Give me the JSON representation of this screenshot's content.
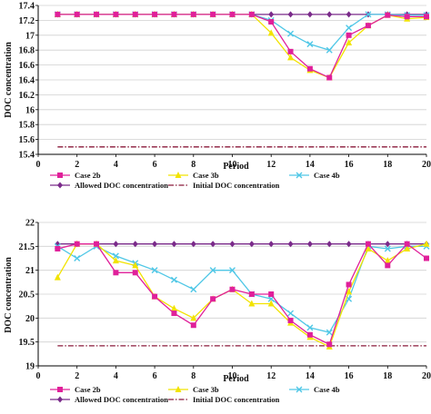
{
  "chart_data": [
    {
      "type": "line",
      "xlabel": "Period",
      "ylabel": "DOC concentration",
      "xlim": [
        0,
        20
      ],
      "ylim": [
        15.4,
        17.4
      ],
      "xticks": [
        "0",
        "2",
        "4",
        "6",
        "8",
        "10",
        "12",
        "14",
        "16",
        "18",
        "20"
      ],
      "yticks": [
        "15.4",
        "15.6",
        "15.8",
        "16",
        "16.2",
        "16.4",
        "16.6",
        "16.8",
        "17",
        "17.2",
        "17.4"
      ],
      "grid": "horizontal",
      "legend_position": "bottom",
      "x": [
        1,
        2,
        3,
        4,
        5,
        6,
        7,
        8,
        9,
        10,
        11,
        12,
        13,
        14,
        15,
        16,
        17,
        18,
        19,
        20
      ],
      "series": [
        {
          "name": "Case 2b",
          "color": "#e0209a",
          "marker": "square",
          "values": [
            17.28,
            17.28,
            17.28,
            17.28,
            17.28,
            17.28,
            17.28,
            17.28,
            17.28,
            17.28,
            17.28,
            17.18,
            16.78,
            16.55,
            16.43,
            17.0,
            17.13,
            17.27,
            17.25,
            17.25
          ]
        },
        {
          "name": "Case 3b",
          "color": "#f2e300",
          "marker": "triangle",
          "values": [
            17.28,
            17.28,
            17.28,
            17.28,
            17.28,
            17.28,
            17.28,
            17.28,
            17.28,
            17.28,
            17.28,
            17.03,
            16.7,
            16.53,
            16.43,
            16.9,
            17.13,
            17.27,
            17.22,
            17.24
          ]
        },
        {
          "name": "Case 4b",
          "color": "#4fc7e6",
          "marker": "x",
          "values": [
            17.28,
            17.28,
            17.28,
            17.28,
            17.28,
            17.28,
            17.28,
            17.28,
            17.28,
            17.28,
            17.28,
            17.2,
            17.02,
            16.88,
            16.8,
            17.1,
            17.28,
            17.28,
            17.27,
            17.27
          ]
        },
        {
          "name": "Allowed DOC concentration",
          "color": "#7a2a8a",
          "marker": "diamond",
          "values": [
            17.28,
            17.28,
            17.28,
            17.28,
            17.28,
            17.28,
            17.28,
            17.28,
            17.28,
            17.28,
            17.28,
            17.28,
            17.28,
            17.28,
            17.28,
            17.28,
            17.28,
            17.28,
            17.28,
            17.28
          ]
        },
        {
          "name": "Initial DOC concentration",
          "color": "#8a1a3a",
          "marker": "none",
          "dash": "dashdot",
          "values": [
            15.5,
            15.5,
            15.5,
            15.5,
            15.5,
            15.5,
            15.5,
            15.5,
            15.5,
            15.5,
            15.5,
            15.5,
            15.5,
            15.5,
            15.5,
            15.5,
            15.5,
            15.5,
            15.5,
            15.5
          ]
        }
      ]
    },
    {
      "type": "line",
      "xlabel": "Period",
      "ylabel": "DOC concentration",
      "xlim": [
        0,
        20
      ],
      "ylim": [
        19,
        22
      ],
      "xticks": [
        "0",
        "2",
        "4",
        "6",
        "8",
        "10",
        "12",
        "14",
        "16",
        "18",
        "20"
      ],
      "yticks": [
        "19",
        "19.5",
        "20",
        "20.5",
        "21",
        "21.5",
        "22"
      ],
      "grid": "horizontal",
      "legend_position": "bottom",
      "x": [
        1,
        2,
        3,
        4,
        5,
        6,
        7,
        8,
        9,
        10,
        11,
        12,
        13,
        14,
        15,
        16,
        17,
        18,
        19,
        20
      ],
      "series": [
        {
          "name": "Case 2b",
          "color": "#e0209a",
          "marker": "square",
          "values": [
            21.45,
            21.55,
            21.55,
            20.95,
            20.95,
            20.45,
            20.1,
            19.85,
            20.4,
            20.6,
            20.5,
            20.5,
            19.95,
            19.65,
            19.45,
            20.7,
            21.55,
            21.1,
            21.55,
            21.25
          ]
        },
        {
          "name": "Case 3b",
          "color": "#f2e300",
          "marker": "triangle",
          "values": [
            20.85,
            21.55,
            21.55,
            21.2,
            21.1,
            20.45,
            20.2,
            20.0,
            20.4,
            20.6,
            20.3,
            20.3,
            19.9,
            19.6,
            19.4,
            20.55,
            21.45,
            21.2,
            21.45,
            21.55
          ]
        },
        {
          "name": "Case 4b",
          "color": "#4fc7e6",
          "marker": "x",
          "values": [
            21.5,
            21.25,
            21.5,
            21.3,
            21.15,
            21.0,
            20.8,
            20.6,
            21.0,
            21.0,
            20.5,
            20.4,
            20.1,
            19.8,
            19.7,
            20.4,
            21.5,
            21.45,
            21.5,
            21.5
          ]
        },
        {
          "name": "Allowed DOC concentration",
          "color": "#7a2a8a",
          "marker": "diamond",
          "values": [
            21.55,
            21.55,
            21.55,
            21.55,
            21.55,
            21.55,
            21.55,
            21.55,
            21.55,
            21.55,
            21.55,
            21.55,
            21.55,
            21.55,
            21.55,
            21.55,
            21.55,
            21.55,
            21.55,
            21.55
          ]
        },
        {
          "name": "Initial DOC concentration",
          "color": "#8a1a3a",
          "marker": "none",
          "dash": "dashdot",
          "values": [
            19.42,
            19.42,
            19.42,
            19.42,
            19.42,
            19.42,
            19.42,
            19.42,
            19.42,
            19.42,
            19.42,
            19.42,
            19.42,
            19.42,
            19.42,
            19.42,
            19.42,
            19.42,
            19.42,
            19.42
          ]
        }
      ]
    }
  ]
}
